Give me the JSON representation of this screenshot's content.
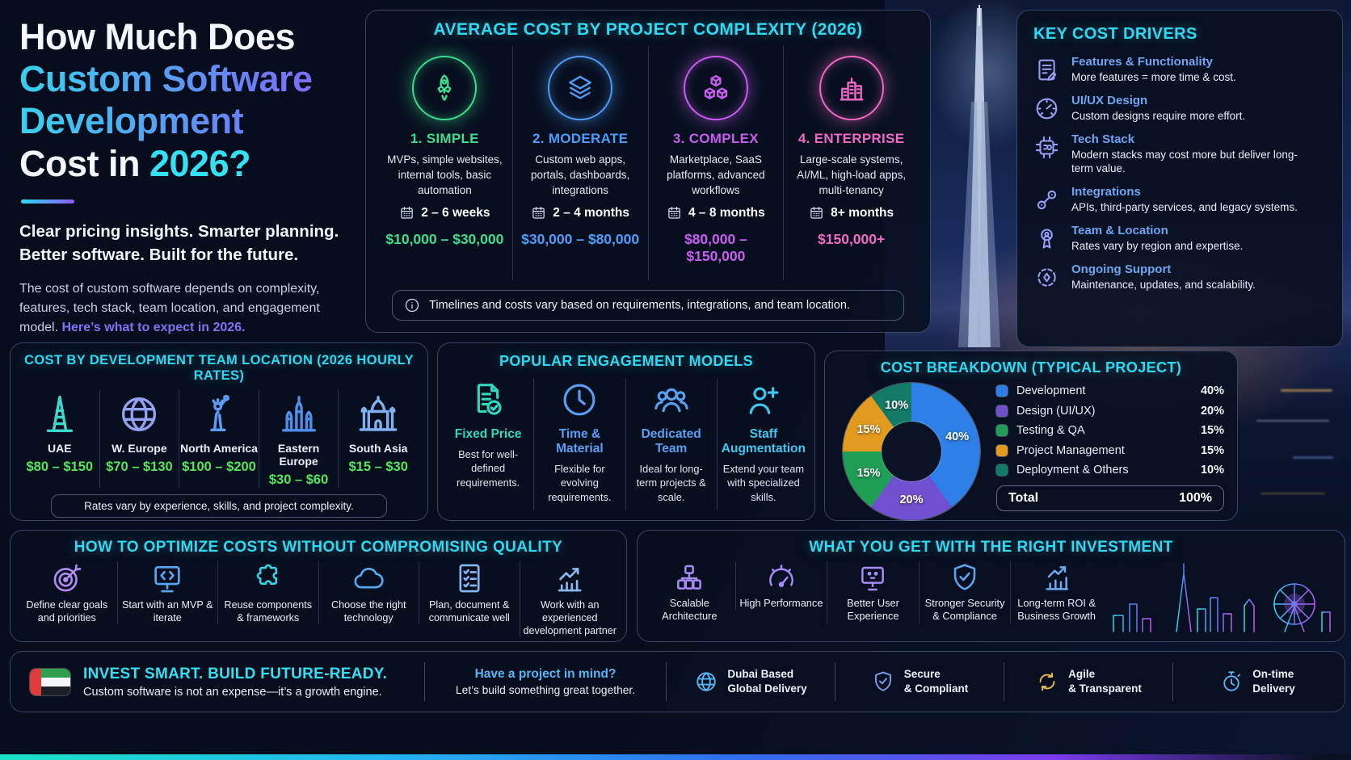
{
  "hero": {
    "title_line1": "How Much Does",
    "title_line2": "Custom Software",
    "title_line3": "Development",
    "title_line4_prefix": "Cost in",
    "title_line4_year": "2026?",
    "subtitle_line1": "Clear pricing insights. Smarter planning.",
    "subtitle_line2": "Better software. Built for the future.",
    "body_text": "The cost of custom software depends on complexity, features, tech stack, team location, and engagement model. ",
    "body_link": "Here’s what to expect in 2026."
  },
  "complexity": {
    "title": "AVERAGE COST BY PROJECT COMPLEXITY (2026)",
    "note": "Timelines and costs vary based on requirements, integrations, and team location.",
    "items": [
      {
        "name": "1. SIMPLE",
        "desc": "MVPs, simple websites, internal tools, basic automation",
        "duration": "2 – 6 weeks",
        "price": "$10,000 – $30,000",
        "color": "#3ddc8e",
        "icon": "rocket-icon"
      },
      {
        "name": "2. MODERATE",
        "desc": "Custom web apps, portals, dashboards, integrations",
        "duration": "2 – 4 months",
        "price": "$30,000 – $80,000",
        "color": "#4f9cf9",
        "icon": "layers-icon"
      },
      {
        "name": "3. COMPLEX",
        "desc": "Marketplace, SaaS platforms, advanced workflows",
        "duration": "4 – 8 months",
        "price": "$80,000 – $150,000",
        "color": "#c95df0",
        "icon": "cubes-icon"
      },
      {
        "name": "4. ENTERPRISE",
        "desc": "Large-scale systems, AI/ML, high-load apps, multi-tenancy",
        "duration": "8+ months",
        "price": "$150,000+",
        "color": "#f06ac4",
        "icon": "city-icon"
      }
    ]
  },
  "drivers": {
    "title": "KEY COST DRIVERS",
    "items": [
      {
        "title": "Features & Functionality",
        "desc": "More features = more time & cost.",
        "icon": "document-pen-icon"
      },
      {
        "title": "UI/UX Design",
        "desc": "Custom designs require more effort.",
        "icon": "gauge-icon"
      },
      {
        "title": "Tech Stack",
        "desc": "Modern stacks may cost more but deliver long-term value.",
        "icon": "chip-icon"
      },
      {
        "title": "Integrations",
        "desc": "APIs, third-party services, and legacy systems.",
        "icon": "nodes-icon"
      },
      {
        "title": "Team & Location",
        "desc": "Rates vary by region and expertise.",
        "icon": "person-award-icon"
      },
      {
        "title": "Ongoing Support",
        "desc": "Maintenance, updates, and scalability.",
        "icon": "support-icon"
      }
    ]
  },
  "locations": {
    "title": "COST BY DEVELOPMENT TEAM LOCATION (2026 HOURLY RATES)",
    "note": "Rates vary by experience, skills, and project complexity.",
    "items": [
      {
        "name": "UAE",
        "rate": "$80 – $150",
        "color": "#3fd6ce",
        "icon": "burj-khalifa-icon"
      },
      {
        "name": "W. Europe",
        "rate": "$70 – $130",
        "color": "#93a1f2",
        "icon": "globe-icon"
      },
      {
        "name": "North America",
        "rate": "$100 – $200",
        "color": "#5c9cf5",
        "icon": "statue-of-liberty-icon"
      },
      {
        "name": "Eastern Europe",
        "rate": "$30 – $60",
        "color": "#4f8fe8",
        "icon": "kremlin-icon"
      },
      {
        "name": "South Asia",
        "rate": "$15 – $30",
        "color": "#7fb0f0",
        "icon": "taj-mahal-icon"
      }
    ]
  },
  "engagement": {
    "title": "POPULAR ENGAGEMENT MODELS",
    "items": [
      {
        "name": "Fixed Price",
        "desc": "Best for well-defined requirements.",
        "color": "#2fd9c0",
        "icon": "document-check-icon"
      },
      {
        "name": "Time & Material",
        "desc": "Flexible for evolving requirements.",
        "color": "#5b9ef5",
        "icon": "clock-icon"
      },
      {
        "name": "Dedicated Team",
        "desc": "Ideal for long-term projects & scale.",
        "color": "#57a0f2",
        "icon": "team-icon"
      },
      {
        "name": "Staff Augmentation",
        "desc": "Extend your team with specialized skills.",
        "color": "#3ec7f0",
        "icon": "person-plus-icon"
      }
    ]
  },
  "chart_data": {
    "type": "pie",
    "title": "COST BREAKDOWN (TYPICAL PROJECT)",
    "labels": [
      "Development",
      "Design (UI/UX)",
      "Testing & QA",
      "Project Management",
      "Deployment & Others"
    ],
    "values": [
      40,
      20,
      15,
      15,
      10
    ],
    "colors": [
      "#2e7fe8",
      "#7050cf",
      "#1f9e55",
      "#e29a1f",
      "#147a68"
    ],
    "legend_position": "right",
    "donut": true,
    "start_angle_deg": 0,
    "total_label": "Total",
    "total_value": "100%"
  },
  "optimize": {
    "title": "HOW TO OPTIMIZE COSTS WITHOUT COMPROMISING QUALITY",
    "items": [
      {
        "label": "Define clear goals and priorities",
        "color": "#b18af8",
        "icon": "target-arrow-icon"
      },
      {
        "label": "Start with an MVP & iterate",
        "color": "#57a7f7",
        "icon": "monitor-code-icon"
      },
      {
        "label": "Reuse components & frameworks",
        "color": "#33d6e8",
        "icon": "puzzle-icon"
      },
      {
        "label": "Choose the right technology",
        "color": "#58a9f5",
        "icon": "cloud-icon"
      },
      {
        "label": "Plan, document & communicate well",
        "color": "#86b6f5",
        "icon": "checklist-icon"
      },
      {
        "label": "Work with an experienced development partner",
        "color": "#8fb8f2",
        "icon": "growth-chart-icon"
      }
    ]
  },
  "benefits": {
    "title": "WHAT YOU GET WITH THE RIGHT INVESTMENT",
    "items": [
      {
        "label": "Scalable Architecture",
        "color": "#a78bfa",
        "icon": "building-blocks-icon"
      },
      {
        "label": "High Performance",
        "color": "#a78bfa",
        "icon": "speedometer-icon"
      },
      {
        "label": "Better User Experience",
        "color": "#a78bfa",
        "icon": "monitor-face-icon"
      },
      {
        "label": "Stronger Security & Compliance",
        "color": "#5da7f5",
        "icon": "shield-check-icon"
      },
      {
        "label": "Long-term ROI & Business Growth",
        "color": "#6fa9f2",
        "icon": "bar-growth-icon"
      }
    ]
  },
  "footer": {
    "headline": "INVEST SMART. BUILD FUTURE-READY.",
    "subline": "Custom software is not an expense—it’s a growth engine.",
    "cta_line1": "Have a project in mind?",
    "cta_line2": "Let’s build something great together.",
    "badges": [
      {
        "line1": "Dubai Based",
        "line2": "Global Delivery",
        "color": "#58b6f5",
        "icon": "globe-icon"
      },
      {
        "line1": "Secure",
        "line2": "& Compliant",
        "color": "#7ea0f0",
        "icon": "shield-icon"
      },
      {
        "line1": "Agile",
        "line2": "& Transparent",
        "color": "#e8c34a",
        "icon": "cycle-icon"
      },
      {
        "line1": "On-time",
        "line2": "Delivery",
        "color": "#58b6f5",
        "icon": "stopwatch-icon"
      }
    ]
  },
  "colors": {
    "heading_cyan": "#2ed9f2",
    "rate_green": "#56e45f",
    "driver_title_blue": "#6ea6f2",
    "link_violet": "#7d75f5",
    "year_cyan": "#35e0f0"
  }
}
